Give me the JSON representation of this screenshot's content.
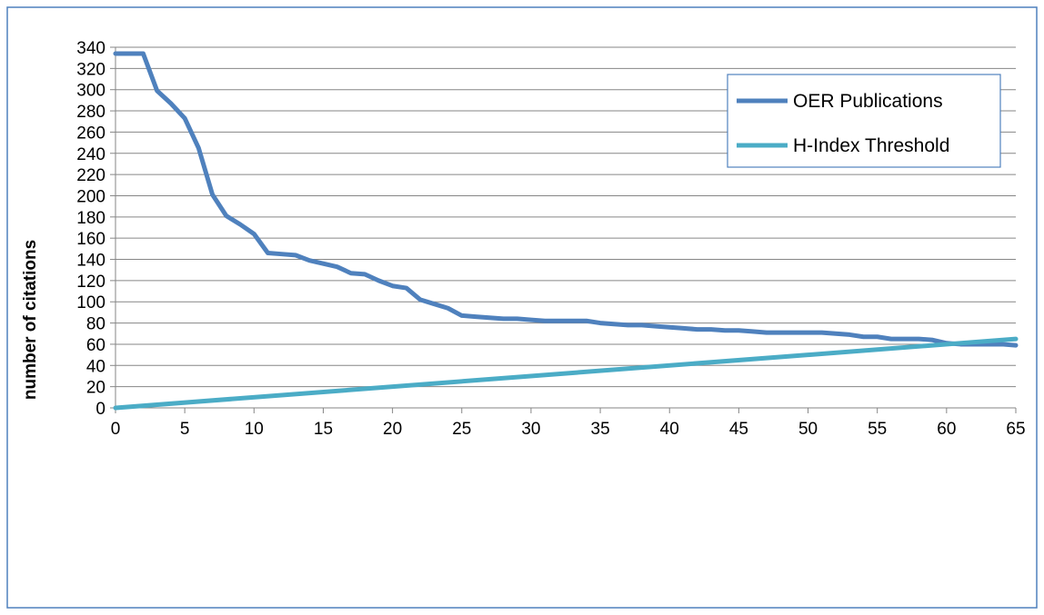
{
  "chart_data": {
    "type": "line",
    "title": "",
    "xlabel": "",
    "ylabel": "number of citations",
    "xlim": [
      0,
      65
    ],
    "ylim": [
      0,
      340
    ],
    "x_ticks": [
      0,
      5,
      10,
      15,
      20,
      25,
      30,
      35,
      40,
      45,
      50,
      55,
      60,
      65
    ],
    "y_ticks": [
      0,
      20,
      40,
      60,
      80,
      100,
      120,
      140,
      160,
      180,
      200,
      220,
      240,
      260,
      280,
      300,
      320,
      340
    ],
    "grid": "horizontal",
    "legend_position": "top-right",
    "colors": {
      "oer": "#4f81bd",
      "h_index": "#4bacc6",
      "gridline": "#868686",
      "frame": "#4f81bd"
    },
    "series": [
      {
        "name": "OER Publications",
        "x": [
          0,
          1,
          2,
          3,
          4,
          5,
          6,
          7,
          8,
          9,
          10,
          11,
          12,
          13,
          14,
          15,
          16,
          17,
          18,
          19,
          20,
          21,
          22,
          23,
          24,
          25,
          26,
          27,
          28,
          29,
          30,
          31,
          32,
          33,
          34,
          35,
          36,
          37,
          38,
          39,
          40,
          41,
          42,
          43,
          44,
          45,
          46,
          47,
          48,
          49,
          50,
          51,
          52,
          53,
          54,
          55,
          56,
          57,
          58,
          59,
          60,
          61,
          62,
          63,
          64,
          65
        ],
        "values": [
          334,
          334,
          334,
          299,
          287,
          273,
          245,
          201,
          181,
          173,
          164,
          146,
          145,
          144,
          139,
          136,
          133,
          127,
          126,
          120,
          115,
          113,
          102,
          98,
          94,
          87,
          86,
          85,
          84,
          84,
          83,
          82,
          82,
          82,
          82,
          80,
          79,
          78,
          78,
          77,
          76,
          75,
          74,
          74,
          73,
          73,
          72,
          71,
          71,
          71,
          71,
          71,
          70,
          69,
          67,
          67,
          65,
          65,
          65,
          64,
          61,
          60,
          60,
          60,
          60,
          59
        ]
      },
      {
        "name": "H-Index Threshold",
        "x": [
          0,
          65
        ],
        "values": [
          0,
          65
        ]
      }
    ]
  }
}
